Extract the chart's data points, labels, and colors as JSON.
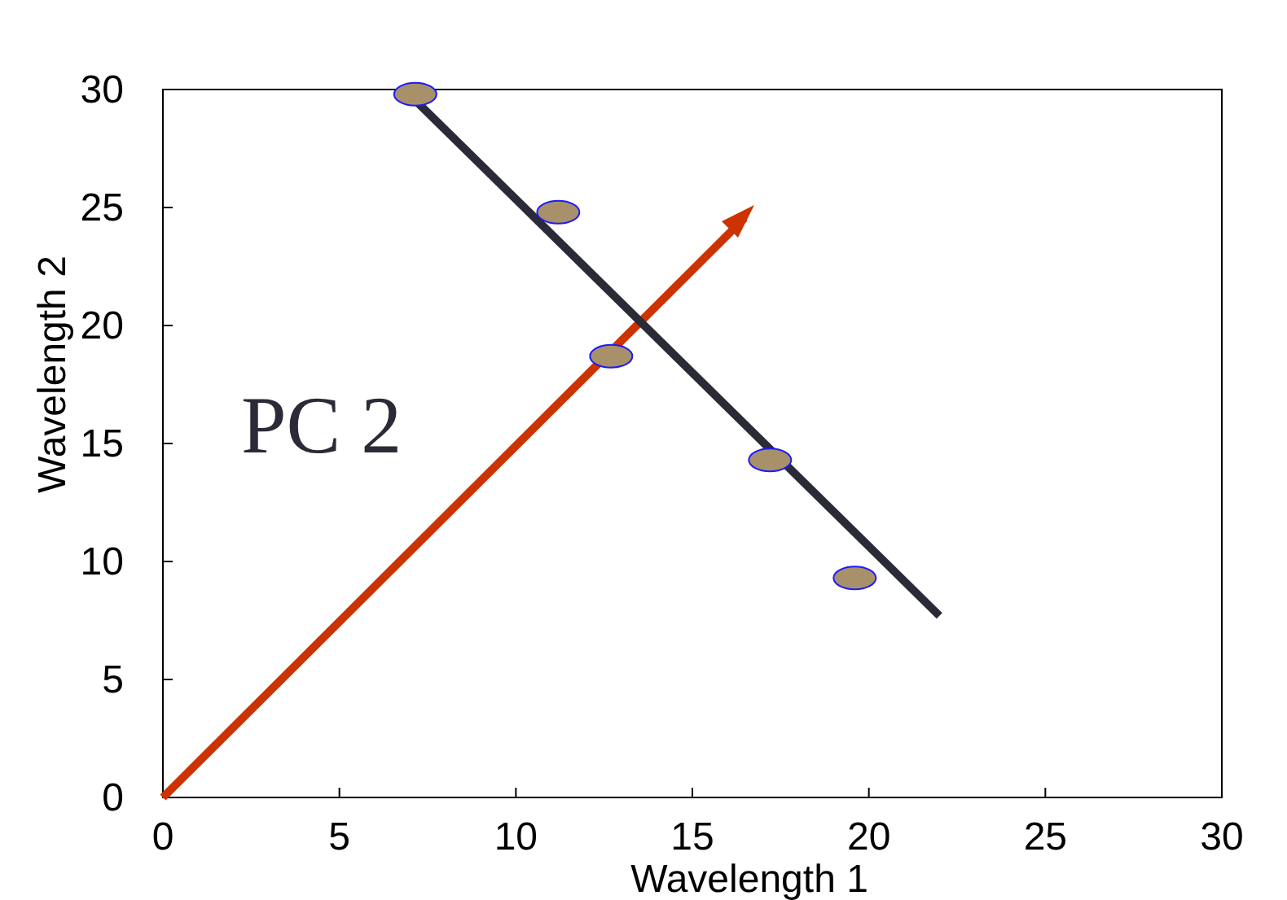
{
  "chart_data": {
    "type": "scatter",
    "xlabel": "Wavelength 1",
    "ylabel": "Wavelength 2",
    "xlim": [
      0,
      30
    ],
    "ylim": [
      0,
      30
    ],
    "xticks": [
      0,
      5,
      10,
      15,
      20,
      25,
      30
    ],
    "yticks": [
      0,
      5,
      10,
      15,
      20,
      25,
      30
    ],
    "grid": false,
    "marker": "circle",
    "series": [
      {
        "type": "line",
        "color": "#2b2b38",
        "x": [
          6.84,
          22
        ],
        "values": [
          30,
          7.7
        ],
        "marker": "none"
      },
      {
        "color": "#a8906a",
        "x": [
          7.15,
          11.2,
          12.7,
          17.2,
          19.6
        ],
        "values": [
          29.8,
          24.8,
          18.7,
          14.3,
          9.3
        ]
      }
    ],
    "annotations": [
      "PC 2"
    ]
  }
}
